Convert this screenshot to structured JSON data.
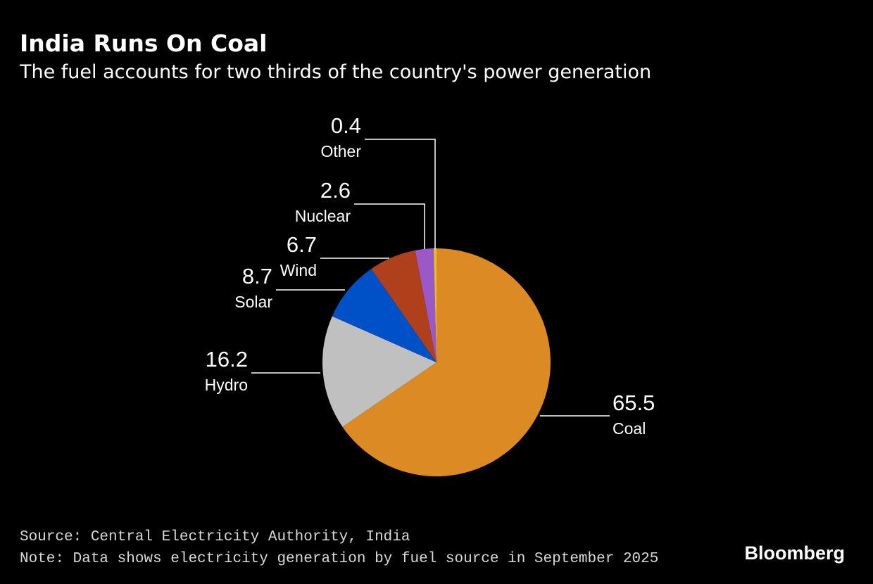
{
  "chart_data": {
    "type": "pie",
    "title": "India Runs On Coal",
    "subtitle": "The fuel accounts for two thirds of the country's power generation",
    "categories": [
      "Coal",
      "Hydro",
      "Solar",
      "Wind",
      "Nuclear",
      "Other"
    ],
    "values": [
      65.5,
      16.2,
      8.7,
      6.7,
      2.6,
      0.4
    ],
    "colors": [
      "#dc8a24",
      "#c0c0c0",
      "#0050c8",
      "#b0401c",
      "#9b59c8",
      "#e8c020"
    ],
    "source": "Source: Central Electricity Authority, India",
    "note": "Note: Data shows electricity generation by fuel source in September 2025"
  },
  "credit": "Bloomberg"
}
